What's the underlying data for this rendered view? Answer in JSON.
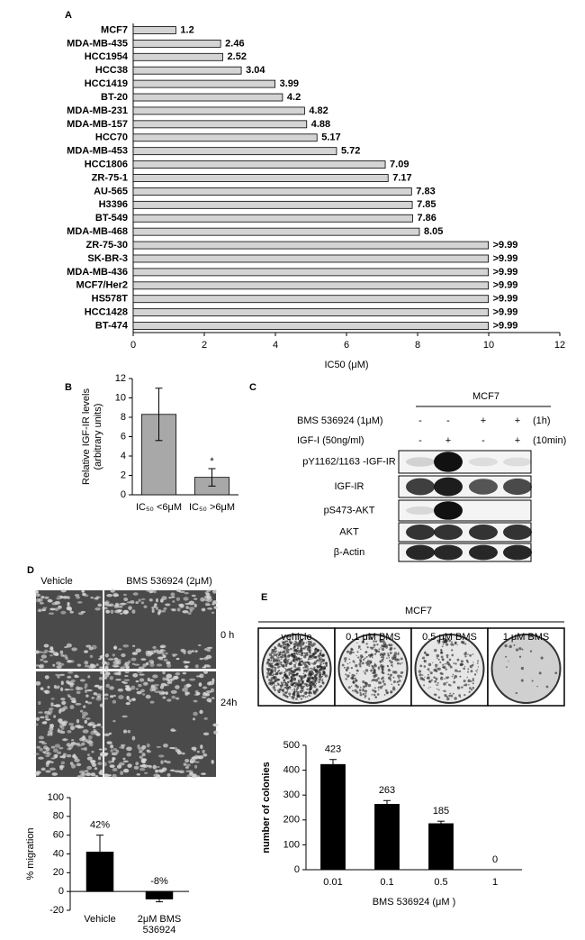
{
  "chart_data": [
    {
      "type": "hbar",
      "panel_label": "A",
      "categories": [
        "MCF7",
        "MDA-MB-435",
        "HCC1954",
        "HCC38",
        "HCC1419",
        "BT-20",
        "MDA-MB-231",
        "MDA-MB-157",
        "HCC70",
        "MDA-MB-453",
        "HCC1806",
        "ZR-75-1",
        "AU-565",
        "H3396",
        "BT-549",
        "MDA-MB-468",
        "ZR-75-30",
        "SK-BR-3",
        "MDA-MB-436",
        "MCF7/Her2",
        "HS578T",
        "HCC1428",
        "BT-474"
      ],
      "values": [
        1.2,
        2.46,
        2.52,
        3.04,
        3.99,
        4.2,
        4.82,
        4.88,
        5.17,
        5.72,
        7.09,
        7.17,
        7.83,
        7.85,
        7.86,
        8.05,
        9.99,
        9.99,
        9.99,
        9.99,
        9.99,
        9.99,
        9.99
      ],
      "value_labels": [
        "1.2",
        "2.46",
        "2.52",
        "3.04",
        "3.99",
        "4.2",
        "4.82",
        "4.88",
        "5.17",
        "5.72",
        "7.09",
        "7.17",
        "7.83",
        "7.85",
        "7.86",
        "8.05",
        ">9.99",
        ">9.99",
        ">9.99",
        ">9.99",
        ">9.99",
        ">9.99",
        ">9.99"
      ],
      "xlabel": "IC50 (μM)",
      "xlim": [
        0,
        12
      ],
      "xticks": [
        0,
        2,
        4,
        6,
        8,
        10,
        12
      ],
      "color": "#d4d4d4"
    },
    {
      "type": "bar",
      "panel_label": "B",
      "categories": [
        "IC₅₀ <6μM",
        "IC₅₀ >6μM"
      ],
      "values": [
        8.3,
        1.8
      ],
      "errors": [
        2.7,
        0.9
      ],
      "annotation": "*",
      "ylabel": [
        "Relative IGF-IR levels",
        "(arbitrary units)"
      ],
      "ylim": [
        0,
        12
      ],
      "yticks": [
        0,
        2,
        4,
        6,
        8,
        10,
        12
      ],
      "color": "#a8a8a8"
    },
    {
      "type": "bar",
      "categories": [
        "Vehicle",
        "2μM BMS 536924"
      ],
      "values": [
        42,
        -8
      ],
      "value_labels": [
        "42%",
        "-8%"
      ],
      "errors": [
        18,
        3
      ],
      "ylabel": [
        "% migration"
      ],
      "ylim": [
        -20,
        100
      ],
      "yticks": [
        -20,
        0,
        20,
        40,
        60,
        80,
        100
      ],
      "color": "#000000"
    },
    {
      "type": "bar",
      "categories": [
        "0.01",
        "0.1",
        "0.5",
        "1"
      ],
      "values": [
        423,
        263,
        185,
        0
      ],
      "errors": [
        20,
        15,
        10,
        0
      ],
      "ylabel": [
        "number of colonies"
      ],
      "xlabel": "BMS 536924 (μM )",
      "ylim": [
        0,
        500
      ],
      "yticks": [
        0,
        100,
        200,
        300,
        400,
        500
      ],
      "color": "#000000"
    }
  ],
  "blot": {
    "panel_label": "C",
    "cell_line": "MCF7",
    "treatments": [
      {
        "label": "BMS 536924  (1μM)",
        "signs": [
          "-",
          "-",
          "+",
          "+"
        ],
        "time": "(1h)"
      },
      {
        "label": "IGF-I (50ng/ml)",
        "signs": [
          "-",
          "+",
          "-",
          "+"
        ],
        "time": "(10min)"
      }
    ],
    "bands": [
      "pY1162/1163 -IGF-IR",
      "IGF-IR",
      "pS473-AKT",
      "AKT",
      "β-Actin"
    ]
  },
  "migration": {
    "panel_label": "D",
    "columns": [
      "Vehicle",
      "BMS 536924 (2μM)"
    ],
    "rows": [
      "0 h",
      "24h"
    ]
  },
  "colony": {
    "panel_label": "E",
    "title": "MCF7",
    "dishes": [
      "vehicle",
      "0.1 μM BMS",
      "0.5 μM BMS",
      "1 μM BMS"
    ]
  }
}
